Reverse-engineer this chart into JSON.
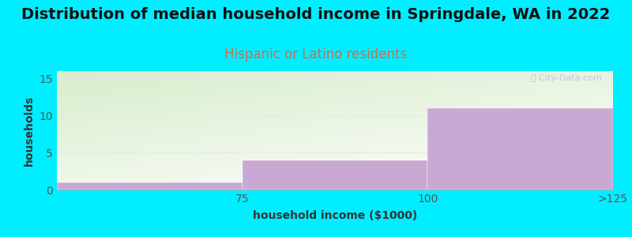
{
  "title": "Distribution of median household income in Springdale, WA in 2022",
  "subtitle": "Hispanic or Latino residents",
  "categories": [
    "75",
    "100",
    ">125"
  ],
  "values": [
    1,
    4,
    11
  ],
  "bar_color": "#c9a8d4",
  "background_color": "#00eeff",
  "plot_bg_top_color": "#d8edcc",
  "plot_bg_bottom_color": "#f8f8f8",
  "xlabel": "household income ($1000)",
  "ylabel": "households",
  "ylim_max": 16,
  "yticks": [
    0,
    5,
    10,
    15
  ],
  "title_fontsize": 14,
  "subtitle_fontsize": 12,
  "subtitle_color": "#c87050",
  "axis_label_fontsize": 10,
  "tick_fontsize": 10,
  "watermark_text": "Ⓐ City-Data.com",
  "watermark_color": "#b8c8d4",
  "grid_color": "#e8e8e8",
  "n_bins": 3,
  "bin_edges": [
    0,
    1,
    2,
    3
  ]
}
